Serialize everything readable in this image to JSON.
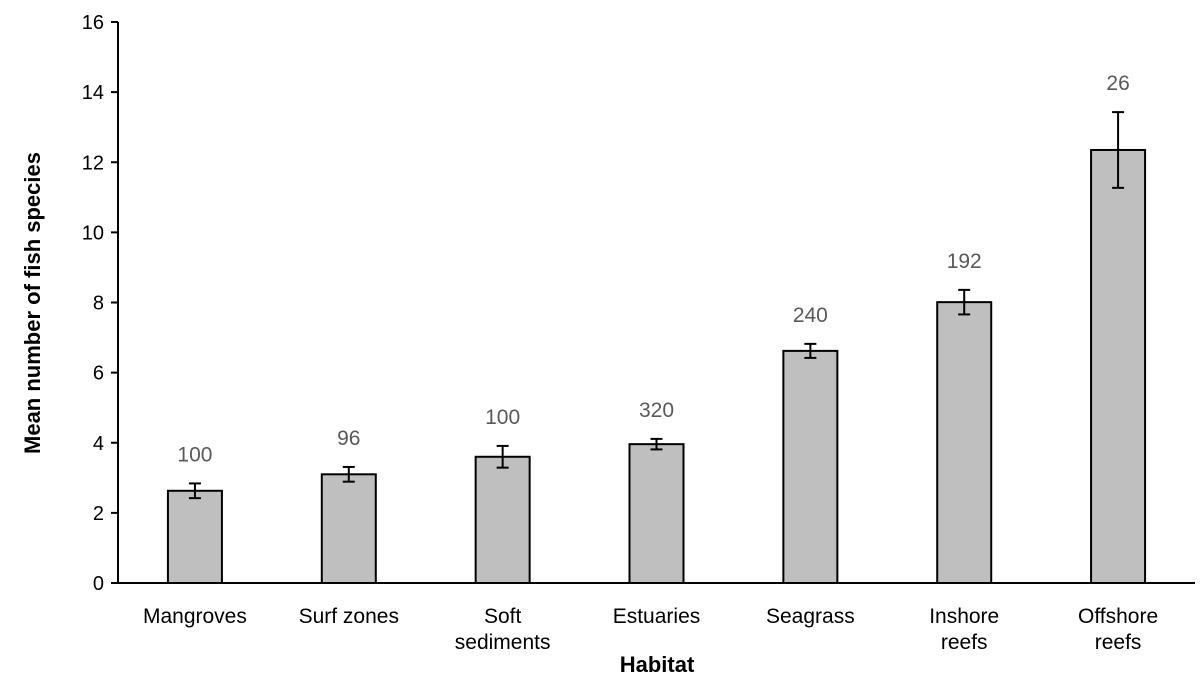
{
  "chart_data": {
    "type": "bar",
    "title": "",
    "xlabel": "Habitat",
    "ylabel": "Mean number of fish species",
    "ylim": [
      0,
      16
    ],
    "yticks": [
      0,
      2,
      4,
      6,
      8,
      10,
      12,
      14,
      16
    ],
    "grid": false,
    "categories": [
      [
        "Mangroves"
      ],
      [
        "Surf zones"
      ],
      [
        "Soft",
        "sediments"
      ],
      [
        "Estuaries"
      ],
      [
        "Seagrass"
      ],
      [
        "Inshore",
        "reefs"
      ],
      [
        "Offshore",
        "reefs"
      ]
    ],
    "values": [
      2.63,
      3.1,
      3.6,
      3.96,
      6.62,
      8.01,
      12.35
    ],
    "errors": [
      0.21,
      0.21,
      0.31,
      0.15,
      0.2,
      0.35,
      1.08
    ],
    "bar_labels": [
      "100",
      "96",
      "100",
      "320",
      "240",
      "192",
      "26"
    ],
    "bar_color": "#bfbfbf",
    "label_color": "#595959"
  }
}
